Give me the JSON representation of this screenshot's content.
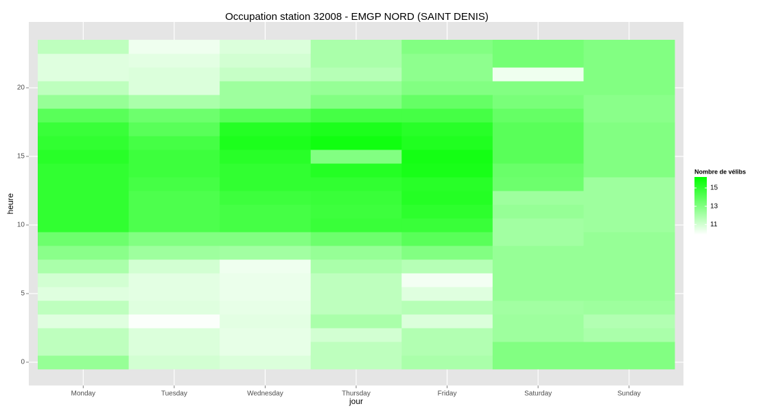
{
  "chart_data": {
    "type": "heatmap",
    "title": "Occupation station 32008 - EMGP NORD (SAINT DENIS)",
    "x_label": "jour",
    "y_label": "heure",
    "categories": [
      "Monday",
      "Tuesday",
      "Wednesday",
      "Thursday",
      "Friday",
      "Saturday",
      "Sunday"
    ],
    "y": [
      0,
      1,
      2,
      3,
      4,
      5,
      6,
      7,
      8,
      9,
      10,
      11,
      12,
      13,
      14,
      15,
      16,
      17,
      18,
      19,
      20,
      21,
      22,
      23
    ],
    "values": [
      [
        12.5,
        11.5,
        11.5,
        10.7,
        11.5,
        10.7,
        11,
        12,
        12.8,
        13.5,
        15,
        15,
        15,
        15,
        15,
        15.2,
        15,
        14.8,
        14,
        12.5,
        11.5,
        10.7,
        10.7,
        11.5
      ],
      [
        11,
        10.8,
        10.8,
        10,
        10.7,
        10.6,
        10.6,
        11,
        12.3,
        13,
        14.3,
        14.3,
        14.3,
        14.5,
        14.7,
        14.7,
        14.5,
        14,
        13.5,
        12,
        10.8,
        10.8,
        10.6,
        10.3
      ],
      [
        10.8,
        10.5,
        10.5,
        10.6,
        10.5,
        10.4,
        10.4,
        10.3,
        12.2,
        13,
        14.5,
        14.5,
        14.7,
        15,
        15,
        15.2,
        15.5,
        15.3,
        14,
        12.3,
        12.3,
        11.3,
        11,
        10.8
      ],
      [
        11.5,
        11.5,
        11,
        12,
        11.5,
        11.5,
        11.5,
        12,
        12.5,
        13.5,
        14.8,
        14.7,
        14.8,
        15,
        15.3,
        13,
        15.8,
        15.5,
        14.5,
        13,
        12.5,
        11.7,
        12,
        12
      ],
      [
        12,
        11.8,
        11.8,
        10.8,
        11.7,
        10.7,
        10.2,
        11.7,
        13,
        14,
        14.8,
        15.1,
        15.3,
        15.2,
        15.6,
        15.7,
        15.4,
        15.2,
        14.5,
        13.7,
        13,
        12.7,
        12.7,
        13
      ],
      [
        13,
        13,
        12.3,
        12.3,
        12.2,
        12.5,
        12.5,
        12.5,
        12.5,
        12.2,
        12.2,
        12.5,
        12.3,
        13.5,
        13.6,
        14,
        14,
        14,
        13.7,
        13.2,
        13,
        10.3,
        13.3,
        13.3
      ],
      [
        13,
        13,
        12,
        11.8,
        12.3,
        12.5,
        12.5,
        12.5,
        12.5,
        12.5,
        12.3,
        12.3,
        12.3,
        12.3,
        13,
        13,
        13,
        13,
        12.8,
        12.8,
        13,
        13,
        13,
        13
      ]
    ],
    "ylim": [
      -1.7,
      24.8
    ],
    "yticks": [
      0,
      5,
      10,
      15,
      20
    ],
    "grid": true,
    "colorscale": {
      "low": "#ffffff",
      "high": "#00ff00"
    },
    "legend": {
      "title": "Nombre de vélibs",
      "ticks": [
        11,
        13,
        15
      ],
      "limits": [
        9.9,
        16.2
      ]
    }
  }
}
